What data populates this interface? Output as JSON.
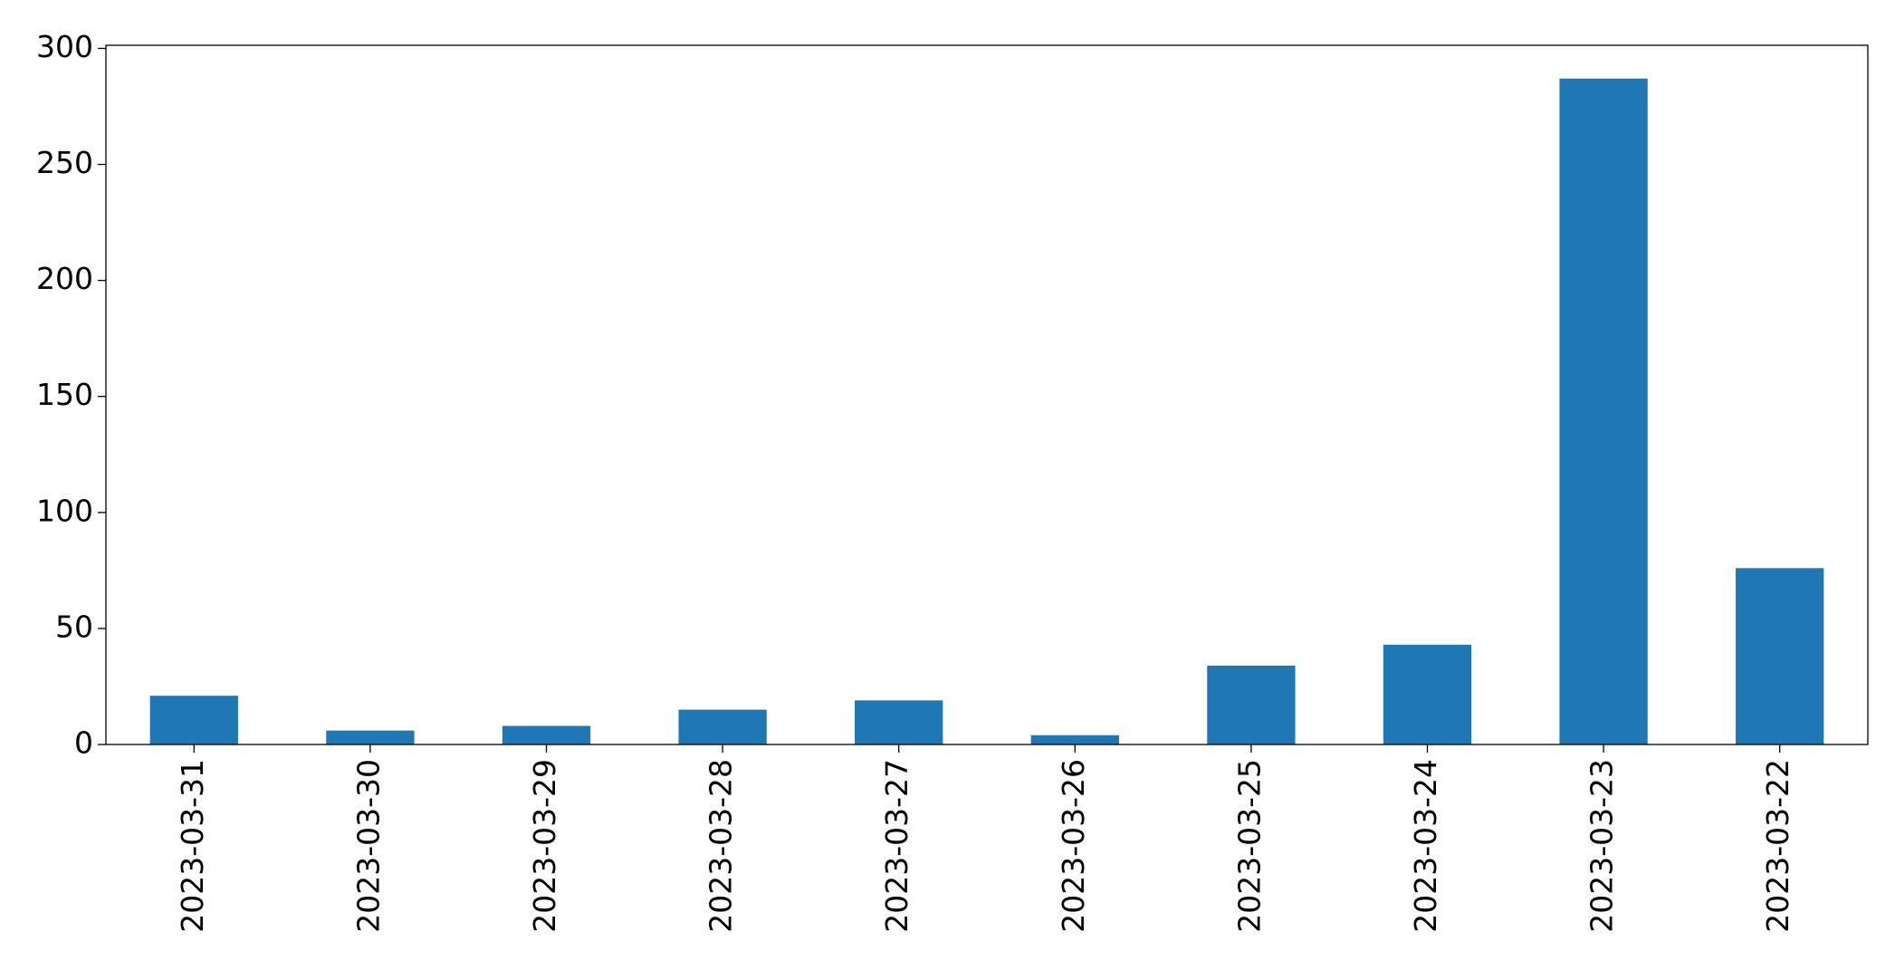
{
  "chart_data": {
    "type": "bar",
    "categories": [
      "2023-03-31",
      "2023-03-30",
      "2023-03-29",
      "2023-03-28",
      "2023-03-27",
      "2023-03-26",
      "2023-03-25",
      "2023-03-24",
      "2023-03-23",
      "2023-03-22"
    ],
    "values": [
      21,
      6,
      8,
      15,
      19,
      4,
      34,
      43,
      287,
      76
    ],
    "color": "#1f77b4",
    "ylim": [
      0,
      301.35
    ],
    "yticks": [
      0,
      50,
      100,
      150,
      200,
      250,
      300
    ],
    "grid": false
  }
}
